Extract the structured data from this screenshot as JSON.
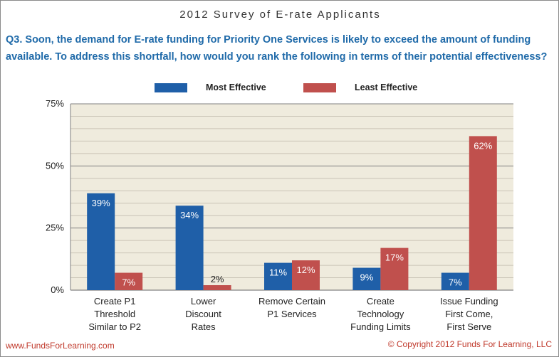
{
  "header": {
    "survey_title": "2012 Survey of E-rate Applicants",
    "question": "Q3. Soon, the demand for E-rate funding for Priority One Services is likely to exceed the amount of funding available. To address this shortfall, how would you rank the following in terms of their potential effectiveness?"
  },
  "legend": [
    {
      "label": "Most Effective",
      "color": "#1f5fa8"
    },
    {
      "label": "Least Effective",
      "color": "#c0504d"
    }
  ],
  "chart_data": {
    "type": "bar",
    "categories": [
      [
        "Create P1",
        "Threshold",
        "Similar to P2"
      ],
      [
        "Lower",
        "Discount",
        "Rates"
      ],
      [
        "Remove Certain",
        "P1 Services"
      ],
      [
        "Create",
        "Technology",
        "Funding Limits"
      ],
      [
        "Issue Funding",
        "First Come,",
        "First Serve"
      ]
    ],
    "series": [
      {
        "name": "Most Effective",
        "color": "#1f5fa8",
        "values": [
          39,
          34,
          11,
          9,
          7
        ]
      },
      {
        "name": "Least Effective",
        "color": "#c0504d",
        "values": [
          7,
          2,
          12,
          17,
          62
        ]
      }
    ],
    "ylim": [
      0,
      75
    ],
    "yticks": [
      "0%",
      "25%",
      "50%",
      "75%"
    ],
    "ytick_values": [
      0,
      25,
      50,
      75
    ],
    "value_suffix": "%",
    "plot_background": "#efebdd",
    "grid": true,
    "legend_position": "top"
  },
  "footer": {
    "website": "www.FundsForLearning.com",
    "copyright": "© Copyright 2012  Funds For Learning, LLC"
  }
}
